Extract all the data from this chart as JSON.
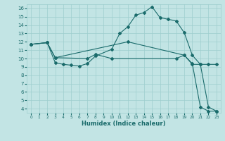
{
  "xlabel": "Humidex (Indice chaleur)",
  "bg_color": "#c2e4e4",
  "line_color": "#1a6b6b",
  "grid_color": "#9ecece",
  "xlim": [
    -0.5,
    23.5
  ],
  "ylim": [
    3.5,
    16.5
  ],
  "xticks": [
    0,
    1,
    2,
    3,
    4,
    5,
    6,
    7,
    8,
    9,
    10,
    11,
    12,
    13,
    14,
    15,
    16,
    17,
    18,
    19,
    20,
    21,
    22,
    23
  ],
  "yticks": [
    4,
    5,
    6,
    7,
    8,
    9,
    10,
    11,
    12,
    13,
    14,
    15,
    16
  ],
  "line1_x": [
    0,
    2,
    3,
    4,
    5,
    6,
    7,
    8,
    10,
    11,
    12,
    13,
    14,
    15,
    16,
    17,
    18,
    19,
    20,
    21,
    22,
    23
  ],
  "line1_y": [
    11.7,
    11.9,
    9.5,
    9.3,
    9.2,
    9.1,
    9.4,
    10.3,
    11.1,
    13.0,
    13.8,
    15.2,
    15.5,
    16.2,
    14.9,
    14.7,
    14.5,
    13.1,
    10.4,
    9.3,
    4.2,
    3.7
  ],
  "line2_x": [
    0,
    2,
    3,
    12,
    19,
    20,
    21,
    22,
    23
  ],
  "line2_y": [
    11.7,
    11.9,
    10.1,
    12.0,
    10.4,
    9.4,
    4.2,
    3.7,
    3.7
  ],
  "line3_x": [
    0,
    2,
    3,
    7,
    8,
    10,
    18,
    19,
    20,
    21,
    22,
    23
  ],
  "line3_y": [
    11.7,
    11.9,
    10.1,
    10.0,
    10.5,
    10.0,
    10.0,
    10.4,
    9.3,
    9.3,
    9.3,
    9.3
  ]
}
